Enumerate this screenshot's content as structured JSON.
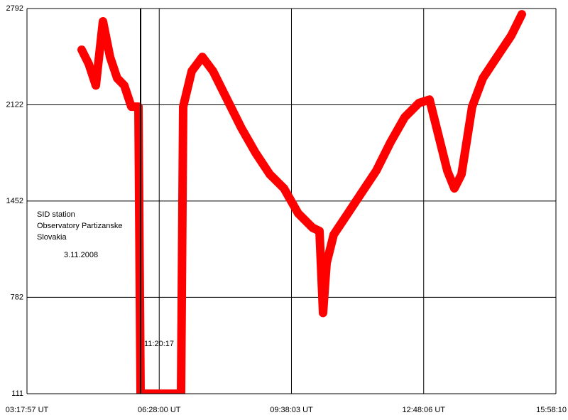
{
  "chart_data": {
    "type": "line",
    "annotations": [
      "SID station",
      "Observatory Partizanske",
      "Slovakia",
      "3.11.2008"
    ],
    "marker_label": "11:20:17",
    "color": "#ff0000",
    "grid": true,
    "x": [
      16592,
      17204,
      17816,
      18429,
      19041,
      19653,
      20266,
      20878,
      21490,
      21674,
      23633,
      25164,
      25348,
      26082,
      27001,
      27919,
      29144,
      30368,
      31593,
      32818,
      34042,
      35267,
      36491,
      37104,
      37410,
      37716,
      38328,
      39553,
      40778,
      42002,
      43227,
      44451,
      45676,
      46594,
      47207,
      48125,
      48737,
      49350,
      50268,
      51187,
      52411,
      53636,
      54554
    ],
    "values": [
      2505,
      2406,
      2257,
      2703,
      2455,
      2307,
      2257,
      2109,
      2109,
      111,
      111,
      111,
      2109,
      2356,
      2455,
      2356,
      2158,
      1960,
      1787,
      1638,
      1540,
      1366,
      1267,
      1243,
      673,
      1020,
      1218,
      1366,
      1515,
      1663,
      1861,
      2035,
      2134,
      2158,
      1960,
      1663,
      1540,
      1638,
      2109,
      2307,
      2455,
      2604,
      2752
    ],
    "xlim": [
      11877,
      57490
    ],
    "xticks": [
      {
        "value": 11877,
        "label": "03:17:57 UT"
      },
      {
        "value": 23280,
        "label": "06:28:00 UT"
      },
      {
        "value": 34683,
        "label": "09:38:03 UT"
      },
      {
        "value": 46086,
        "label": "12:48:06 UT"
      },
      {
        "value": 57490,
        "label": "15:58:10"
      }
    ],
    "ylim": [
      111,
      2792
    ],
    "yticks": [
      111,
      782,
      1452,
      2122,
      2792
    ]
  }
}
